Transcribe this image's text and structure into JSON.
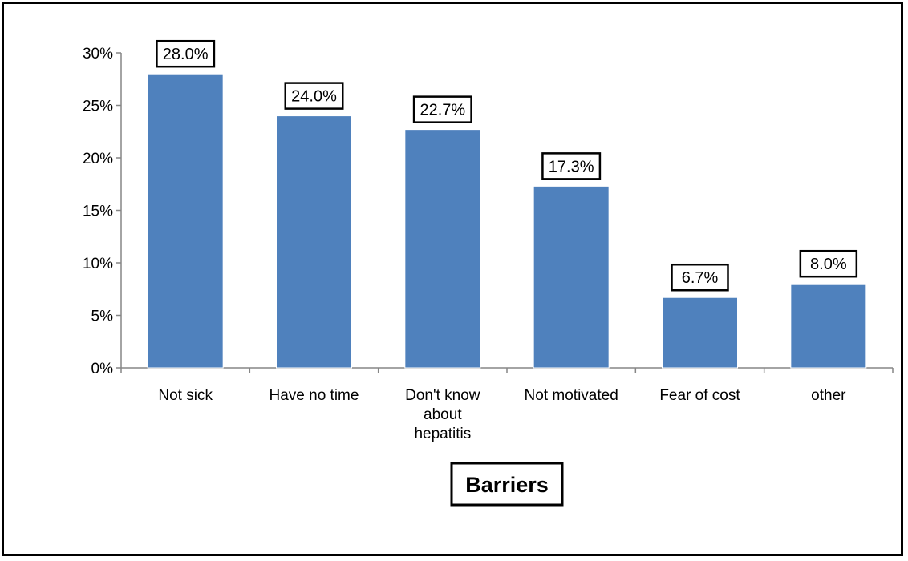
{
  "chart_data": {
    "type": "bar",
    "categories": [
      "Not sick",
      "Have no time",
      "Don't know about hepatitis",
      "Not motivated",
      "Fear of cost",
      "other"
    ],
    "category_lines": [
      [
        "Not sick"
      ],
      [
        "Have no time"
      ],
      [
        "Don't know",
        "about",
        "hepatitis"
      ],
      [
        "Not motivated"
      ],
      [
        "Fear of cost"
      ],
      [
        "other"
      ]
    ],
    "values": [
      28.0,
      24.0,
      22.7,
      17.3,
      6.7,
      8.0
    ],
    "data_labels": [
      "28.0%",
      "24.0%",
      "22.7%",
      "17.3%",
      "6.7%",
      "8.0%"
    ],
    "yticks": [
      0,
      5,
      10,
      15,
      20,
      25,
      30
    ],
    "ytick_labels": [
      "0%",
      "5%",
      "10%",
      "15%",
      "20%",
      "25%",
      "30%"
    ],
    "ylim": [
      0,
      30
    ],
    "xlabel": "Barriers",
    "ylabel": "",
    "title": "",
    "grid": false,
    "bar_color": "#4F81BD"
  }
}
